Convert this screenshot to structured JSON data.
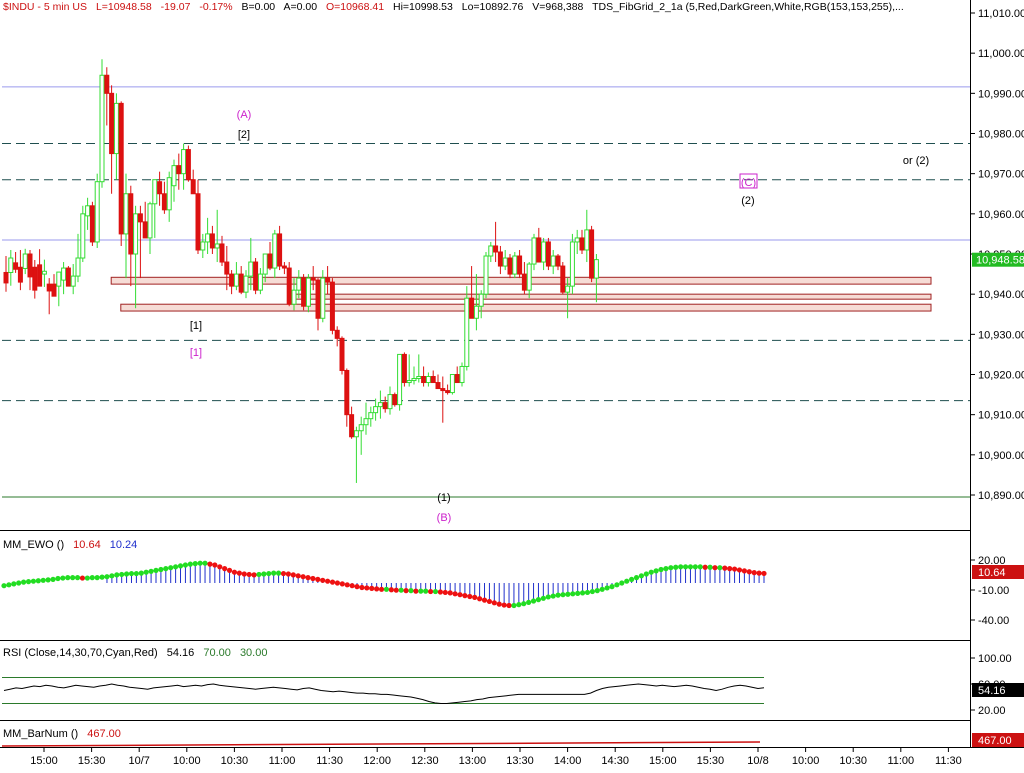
{
  "header": {
    "symbol": "$INDU - 5 min  US",
    "last": "L=10948.58",
    "change": "-19.07",
    "change_pct": "-0.17%",
    "bid": "B=0.00",
    "ask": "A=0.00",
    "open": "O=10968.41",
    "high": "Hi=10998.53",
    "low": "Lo=10892.76",
    "volume": "V=968,388",
    "study": "TDS_FibGrid_2_1a (5,Red,DarkGreen,White,RGB(153,153,255),..."
  },
  "colors": {
    "up": "#33dd33",
    "down": "#dd1111",
    "fib_dash": "#1f4f4f",
    "blue_line": "#9a9aee",
    "green_line": "#2b7a2b",
    "label_black": "#000000",
    "label_magenta": "#cc22cc",
    "ewo_hist": "#1f2fcc",
    "price_tag_bg": "#22bb22",
    "value_tag_bg": "#cc1111",
    "rsi_tag_bg": "#000000"
  },
  "price_axis": {
    "ticks": [
      "11,010.00",
      "11,000.00",
      "10,990.00",
      "10,980.00",
      "10,970.00",
      "10,960.00",
      "10,950.00",
      "10,940.00",
      "10,930.00",
      "10,920.00",
      "10,910.00",
      "10,900.00",
      "10,890.00"
    ],
    "last_price_tag": "10,948.58"
  },
  "time_axis": {
    "ticks": [
      "15:00",
      "15:30",
      "10/7",
      "10:00",
      "10:30",
      "11:00",
      "11:30",
      "12:00",
      "12:30",
      "13:00",
      "13:30",
      "14:00",
      "14:30",
      "15:00",
      "15:30",
      "10/8",
      "10:00",
      "10:30",
      "11:00",
      "11:30"
    ]
  },
  "wave_labels": [
    {
      "text": "(A)",
      "color": "magenta"
    },
    {
      "text": "[2]",
      "color": "black"
    },
    {
      "text": "[1]",
      "color": "black"
    },
    {
      "text": "[1]",
      "color": "magenta"
    },
    {
      "text": "(1)",
      "color": "black"
    },
    {
      "text": "(B)",
      "color": "magenta"
    },
    {
      "text": "(C)",
      "color": "magenta"
    },
    {
      "text": "(2)",
      "color": "black"
    },
    {
      "text": "or (2)",
      "color": "black"
    }
  ],
  "ewo": {
    "title": "MM_EWO ()",
    "v1": "10.64",
    "v2": "10.24",
    "axis": [
      "20.00",
      "-10.00",
      "-40.00"
    ],
    "tag": "10.64"
  },
  "rsi": {
    "title": "RSI (Close,14,30,70,Cyan,Red)",
    "v1": "54.16",
    "v2": "70.00",
    "v3": "30.00",
    "axis": [
      "100.00",
      "60.00",
      "20.00"
    ],
    "tag": "54.16"
  },
  "barnum": {
    "title": "MM_BarNum ()",
    "value": "467.00",
    "tag": "467.00"
  },
  "chart_data": {
    "type": "candlestick",
    "y_range": [
      10887,
      11013
    ],
    "levels": {
      "blue_lines": [
        10991.6,
        10953.5
      ],
      "green_line": 10889.5,
      "fib_dashed": [
        10977.5,
        10968.5,
        10928.5,
        10913.5
      ]
    },
    "zones": [
      {
        "from_bar": 24,
        "to_bar": 128,
        "low": 10942.5,
        "high": 10944.2
      },
      {
        "from_bar": 61,
        "to_bar": 128,
        "low": 10938.8,
        "high": 10940.0
      },
      {
        "from_bar": 26,
        "to_bar": 128,
        "low": 10935.8,
        "high": 10937.5
      }
    ],
    "candles": [
      {
        "o": 10945.4,
        "h": 10949.5,
        "l": 10940.6,
        "c": 10942.8
      },
      {
        "o": 10945.4,
        "h": 10951.0,
        "l": 10942.1,
        "c": 10949.0
      },
      {
        "o": 10947.8,
        "h": 10950.5,
        "l": 10945.3,
        "c": 10946.2
      },
      {
        "o": 10946.7,
        "h": 10951.0,
        "l": 10941.0,
        "c": 10943.0
      },
      {
        "o": 10946.4,
        "h": 10951.3,
        "l": 10945.0,
        "c": 10950.0
      },
      {
        "o": 10950.0,
        "h": 10951.0,
        "l": 10941.0,
        "c": 10944.3
      },
      {
        "o": 10946.7,
        "h": 10948.5,
        "l": 10938.9,
        "c": 10941.0
      },
      {
        "o": 10947.3,
        "h": 10951.2,
        "l": 10942.0,
        "c": 10942.0
      },
      {
        "o": 10945.0,
        "h": 10948.6,
        "l": 10941.8,
        "c": 10945.7
      },
      {
        "o": 10942.5,
        "h": 10944.0,
        "l": 10935.0,
        "c": 10940.8
      },
      {
        "o": 10942.5,
        "h": 10945.0,
        "l": 10940.0,
        "c": 10939.5
      },
      {
        "o": 10942.0,
        "h": 10945.5,
        "l": 10937.0,
        "c": 10945.5
      },
      {
        "o": 10943.5,
        "h": 10948.0,
        "l": 10940.0,
        "c": 10946.5
      },
      {
        "o": 10946.5,
        "h": 10947.0,
        "l": 10942.0,
        "c": 10942.0
      },
      {
        "o": 10942.0,
        "h": 10947.5,
        "l": 10940.0,
        "c": 10944.5
      },
      {
        "o": 10944.5,
        "h": 10955.0,
        "l": 10943.0,
        "c": 10949.0
      },
      {
        "o": 10949.0,
        "h": 10962.0,
        "l": 10948.0,
        "c": 10960.0
      },
      {
        "o": 10959.5,
        "h": 10964.0,
        "l": 10956.0,
        "c": 10962.0
      },
      {
        "o": 10962.0,
        "h": 10963.0,
        "l": 10952.0,
        "c": 10953.0
      },
      {
        "o": 10953.0,
        "h": 10970.0,
        "l": 10951.5,
        "c": 10968.0
      },
      {
        "o": 10968.0,
        "h": 10998.5,
        "l": 10966.5,
        "c": 10994.5
      },
      {
        "o": 10994.5,
        "h": 10996.5,
        "l": 10982.0,
        "c": 10990.0
      },
      {
        "o": 10990.0,
        "h": 10992.0,
        "l": 10965.0,
        "c": 10975.0
      },
      {
        "o": 10975.0,
        "h": 10990.0,
        "l": 10968.5,
        "c": 10987.5
      },
      {
        "o": 10987.5,
        "h": 10988.0,
        "l": 10952.0,
        "c": 10955.0
      },
      {
        "o": 10955.0,
        "h": 10970.0,
        "l": 10944.0,
        "c": 10965.0
      },
      {
        "o": 10965.0,
        "h": 10967.0,
        "l": 10942.0,
        "c": 10950.0
      },
      {
        "o": 10950.0,
        "h": 10962.0,
        "l": 10936.5,
        "c": 10960.0
      },
      {
        "o": 10960.0,
        "h": 10962.0,
        "l": 10944.0,
        "c": 10958.0
      },
      {
        "o": 10958.0,
        "h": 10963.0,
        "l": 10954.0,
        "c": 10954.0
      },
      {
        "o": 10954.0,
        "h": 10963.0,
        "l": 10950.0,
        "c": 10962.5
      },
      {
        "o": 10962.5,
        "h": 10968.5,
        "l": 10954.0,
        "c": 10968.5
      },
      {
        "o": 10968.0,
        "h": 10970.5,
        "l": 10962.0,
        "c": 10965.0
      },
      {
        "o": 10965.0,
        "h": 10968.0,
        "l": 10960.0,
        "c": 10961.0
      },
      {
        "o": 10961.0,
        "h": 10970.5,
        "l": 10958.0,
        "c": 10969.0
      },
      {
        "o": 10967.0,
        "h": 10973.5,
        "l": 10963.0,
        "c": 10972.0
      },
      {
        "o": 10972.0,
        "h": 10975.0,
        "l": 10966.0,
        "c": 10970.0
      },
      {
        "o": 10970.0,
        "h": 10977.5,
        "l": 10966.0,
        "c": 10976.0
      },
      {
        "o": 10976.0,
        "h": 10977.0,
        "l": 10968.0,
        "c": 10968.5
      },
      {
        "o": 10968.5,
        "h": 10971.0,
        "l": 10965.0,
        "c": 10965.0
      },
      {
        "o": 10965.0,
        "h": 10968.5,
        "l": 10950.0,
        "c": 10951.0
      },
      {
        "o": 10951.0,
        "h": 10955.0,
        "l": 10949.0,
        "c": 10953.0
      },
      {
        "o": 10953.0,
        "h": 10959.0,
        "l": 10950.0,
        "c": 10955.0
      },
      {
        "o": 10955.0,
        "h": 10957.0,
        "l": 10950.0,
        "c": 10951.5
      },
      {
        "o": 10951.5,
        "h": 10961.0,
        "l": 10948.0,
        "c": 10952.5
      },
      {
        "o": 10952.5,
        "h": 10954.5,
        "l": 10947.0,
        "c": 10948.0
      },
      {
        "o": 10948.0,
        "h": 10952.0,
        "l": 10941.0,
        "c": 10945.0
      },
      {
        "o": 10945.0,
        "h": 10946.0,
        "l": 10940.0,
        "c": 10942.0
      },
      {
        "o": 10942.0,
        "h": 10948.0,
        "l": 10941.0,
        "c": 10945.0
      },
      {
        "o": 10945.0,
        "h": 10947.0,
        "l": 10940.0,
        "c": 10940.5
      },
      {
        "o": 10940.5,
        "h": 10946.0,
        "l": 10939.0,
        "c": 10944.5
      },
      {
        "o": 10944.5,
        "h": 10954.0,
        "l": 10941.0,
        "c": 10948.0
      },
      {
        "o": 10948.0,
        "h": 10949.0,
        "l": 10940.0,
        "c": 10941.0
      },
      {
        "o": 10941.0,
        "h": 10946.5,
        "l": 10940.0,
        "c": 10945.0
      },
      {
        "o": 10945.0,
        "h": 10950.0,
        "l": 10943.0,
        "c": 10950.0
      },
      {
        "o": 10950.0,
        "h": 10953.0,
        "l": 10946.0,
        "c": 10946.5
      },
      {
        "o": 10946.5,
        "h": 10956.0,
        "l": 10944.0,
        "c": 10955.0
      },
      {
        "o": 10955.0,
        "h": 10957.0,
        "l": 10946.0,
        "c": 10947.0
      },
      {
        "o": 10947.0,
        "h": 10948.0,
        "l": 10945.0,
        "c": 10946.5
      },
      {
        "o": 10946.5,
        "h": 10948.0,
        "l": 10937.0,
        "c": 10937.5
      },
      {
        "o": 10937.5,
        "h": 10944.0,
        "l": 10936.0,
        "c": 10941.0
      },
      {
        "o": 10941.0,
        "h": 10946.0,
        "l": 10939.0,
        "c": 10944.0
      },
      {
        "o": 10944.0,
        "h": 10945.0,
        "l": 10936.0,
        "c": 10937.0
      },
      {
        "o": 10937.0,
        "h": 10945.0,
        "l": 10935.5,
        "c": 10944.0
      },
      {
        "o": 10944.0,
        "h": 10947.0,
        "l": 10941.0,
        "c": 10943.5
      },
      {
        "o": 10943.5,
        "h": 10944.0,
        "l": 10931.0,
        "c": 10934.0
      },
      {
        "o": 10934.0,
        "h": 10946.0,
        "l": 10933.0,
        "c": 10944.0
      },
      {
        "o": 10944.0,
        "h": 10947.0,
        "l": 10940.0,
        "c": 10943.0
      },
      {
        "o": 10943.0,
        "h": 10944.0,
        "l": 10930.0,
        "c": 10931.0
      },
      {
        "o": 10931.0,
        "h": 10932.0,
        "l": 10927.0,
        "c": 10929.0
      },
      {
        "o": 10929.0,
        "h": 10929.5,
        "l": 10920.0,
        "c": 10921.0
      },
      {
        "o": 10921.0,
        "h": 10921.5,
        "l": 10907.0,
        "c": 10910.0
      },
      {
        "o": 10910.0,
        "h": 10912.0,
        "l": 10904.0,
        "c": 10904.5
      },
      {
        "o": 10904.5,
        "h": 10907.0,
        "l": 10893.0,
        "c": 10906.0
      },
      {
        "o": 10906.0,
        "h": 10909.5,
        "l": 10900.0,
        "c": 10907.5
      },
      {
        "o": 10907.5,
        "h": 10913.0,
        "l": 10905.0,
        "c": 10909.0
      },
      {
        "o": 10909.0,
        "h": 10912.0,
        "l": 10907.0,
        "c": 10910.5
      },
      {
        "o": 10910.5,
        "h": 10914.0,
        "l": 10908.5,
        "c": 10912.0
      },
      {
        "o": 10912.0,
        "h": 10916.0,
        "l": 10909.0,
        "c": 10913.0
      },
      {
        "o": 10913.0,
        "h": 10914.5,
        "l": 10910.5,
        "c": 10911.5
      },
      {
        "o": 10911.5,
        "h": 10917.0,
        "l": 10910.0,
        "c": 10915.0
      },
      {
        "o": 10915.0,
        "h": 10915.5,
        "l": 10912.0,
        "c": 10912.5
      },
      {
        "o": 10912.5,
        "h": 10925.0,
        "l": 10911.0,
        "c": 10925.0
      },
      {
        "o": 10925.0,
        "h": 10925.5,
        "l": 10917.0,
        "c": 10918.0
      },
      {
        "o": 10918.0,
        "h": 10925.0,
        "l": 10917.0,
        "c": 10918.5
      },
      {
        "o": 10918.5,
        "h": 10922.0,
        "l": 10917.5,
        "c": 10919.0
      },
      {
        "o": 10919.0,
        "h": 10925.0,
        "l": 10918.0,
        "c": 10919.5
      },
      {
        "o": 10919.5,
        "h": 10922.0,
        "l": 10917.0,
        "c": 10918.0
      },
      {
        "o": 10918.0,
        "h": 10920.5,
        "l": 10917.0,
        "c": 10919.5
      },
      {
        "o": 10919.5,
        "h": 10921.0,
        "l": 10918.0,
        "c": 10918.0
      },
      {
        "o": 10918.0,
        "h": 10920.0,
        "l": 10916.5,
        "c": 10916.5
      },
      {
        "o": 10916.5,
        "h": 10919.5,
        "l": 10908.0,
        "c": 10916.0
      },
      {
        "o": 10916.0,
        "h": 10917.5,
        "l": 10915.0,
        "c": 10915.5
      },
      {
        "o": 10915.5,
        "h": 10920.0,
        "l": 10915.0,
        "c": 10920.0
      },
      {
        "o": 10920.0,
        "h": 10922.0,
        "l": 10918.0,
        "c": 10918.0
      },
      {
        "o": 10918.0,
        "h": 10923.0,
        "l": 10917.0,
        "c": 10922.0
      },
      {
        "o": 10922.0,
        "h": 10942.0,
        "l": 10921.0,
        "c": 10939.0
      },
      {
        "o": 10939.0,
        "h": 10947.0,
        "l": 10934.0,
        "c": 10934.0
      },
      {
        "o": 10934.0,
        "h": 10945.0,
        "l": 10931.0,
        "c": 10937.0
      },
      {
        "o": 10937.0,
        "h": 10941.0,
        "l": 10934.0,
        "c": 10940.0
      },
      {
        "o": 10940.0,
        "h": 10950.5,
        "l": 10939.0,
        "c": 10949.5
      },
      {
        "o": 10949.5,
        "h": 10953.0,
        "l": 10948.0,
        "c": 10952.0
      },
      {
        "o": 10952.0,
        "h": 10958.0,
        "l": 10948.0,
        "c": 10950.5
      },
      {
        "o": 10950.5,
        "h": 10952.0,
        "l": 10945.0,
        "c": 10947.0
      },
      {
        "o": 10947.0,
        "h": 10951.0,
        "l": 10946.0,
        "c": 10949.0
      },
      {
        "o": 10949.0,
        "h": 10950.0,
        "l": 10944.0,
        "c": 10945.0
      },
      {
        "o": 10945.0,
        "h": 10950.5,
        "l": 10944.0,
        "c": 10949.5
      },
      {
        "o": 10949.5,
        "h": 10951.0,
        "l": 10944.0,
        "c": 10945.0
      },
      {
        "o": 10945.0,
        "h": 10948.0,
        "l": 10940.0,
        "c": 10941.0
      },
      {
        "o": 10941.0,
        "h": 10948.0,
        "l": 10939.0,
        "c": 10947.5
      },
      {
        "o": 10947.5,
        "h": 10955.0,
        "l": 10946.0,
        "c": 10954.0
      },
      {
        "o": 10954.0,
        "h": 10956.5,
        "l": 10948.0,
        "c": 10948.0
      },
      {
        "o": 10948.0,
        "h": 10954.0,
        "l": 10946.0,
        "c": 10953.0
      },
      {
        "o": 10953.0,
        "h": 10954.0,
        "l": 10946.0,
        "c": 10947.0
      },
      {
        "o": 10947.0,
        "h": 10951.0,
        "l": 10945.0,
        "c": 10949.5
      },
      {
        "o": 10949.5,
        "h": 10950.0,
        "l": 10946.0,
        "c": 10947.0
      },
      {
        "o": 10947.0,
        "h": 10948.0,
        "l": 10940.0,
        "c": 10940.5
      },
      {
        "o": 10940.5,
        "h": 10944.0,
        "l": 10934.0,
        "c": 10942.0
      },
      {
        "o": 10942.0,
        "h": 10955.0,
        "l": 10940.0,
        "c": 10953.0
      },
      {
        "o": 10953.0,
        "h": 10956.0,
        "l": 10950.0,
        "c": 10954.0
      },
      {
        "o": 10954.0,
        "h": 10956.0,
        "l": 10950.0,
        "c": 10951.0
      },
      {
        "o": 10951.0,
        "h": 10961.0,
        "l": 10948.0,
        "c": 10956.0
      },
      {
        "o": 10956.0,
        "h": 10957.0,
        "l": 10943.0,
        "c": 10944.0
      },
      {
        "o": 10944.0,
        "h": 10950.0,
        "l": 10938.0,
        "c": 10948.6
      }
    ],
    "ewo": [
      -3,
      -2,
      -1,
      0,
      1,
      1.5,
      2,
      2.5,
      3,
      3.5,
      4,
      5,
      5.5,
      6,
      6,
      6,
      5.5,
      5.5,
      6,
      6,
      6.5,
      7,
      8,
      9,
      9.5,
      10,
      10.5,
      10.5,
      11,
      12,
      13,
      14,
      15,
      16,
      17,
      18,
      19,
      20,
      21,
      21.5,
      22,
      22,
      21,
      20,
      18,
      16,
      14,
      12,
      11,
      10,
      9.5,
      9,
      9.5,
      10,
      10.5,
      11,
      11,
      10.5,
      10,
      9,
      8,
      7,
      6,
      5,
      4,
      3,
      2,
      1,
      0,
      -1,
      -2,
      -3,
      -4,
      -5,
      -5.5,
      -6,
      -6.5,
      -7,
      -7,
      -7.5,
      -8,
      -8,
      -8.5,
      -8.5,
      -9,
      -9,
      -9,
      -9.5,
      -9.5,
      -10,
      -10.5,
      -11,
      -12,
      -13,
      -14,
      -15,
      -16,
      -17.5,
      -19,
      -20.5,
      -22,
      -23.5,
      -24.5,
      -25,
      -25,
      -24,
      -23,
      -21.5,
      -20,
      -18.5,
      -17,
      -15.5,
      -14.5,
      -13.5,
      -13,
      -12.5,
      -12,
      -11.5,
      -11,
      -10.5,
      -9.5,
      -8.5,
      -7,
      -5.5,
      -4,
      -2,
      0,
      2,
      4,
      6,
      8,
      10,
      12,
      13.5,
      15,
      16,
      17,
      17.5,
      18,
      18,
      18,
      18,
      18,
      17.5,
      17.5,
      17,
      17,
      16.5,
      16,
      15.5,
      14.5,
      13.5,
      12.5,
      11.5,
      11,
      10.6
    ],
    "rsi": [
      50,
      52,
      54,
      53,
      55,
      57,
      56,
      58,
      57,
      55,
      54,
      56,
      58,
      57,
      56,
      55,
      57,
      58,
      60,
      58,
      57,
      55,
      54,
      53,
      52,
      54,
      55,
      56,
      57,
      58,
      56,
      57,
      58,
      57,
      59,
      60,
      58,
      57,
      56,
      55,
      54,
      53,
      52,
      53,
      54,
      55,
      54,
      53,
      52,
      51,
      53,
      54,
      52,
      50,
      49,
      48,
      49,
      48,
      47,
      46,
      46,
      45,
      45,
      44,
      44,
      43,
      42,
      41,
      40,
      38,
      36,
      33,
      31,
      30,
      30,
      31,
      32,
      33,
      34,
      36,
      37,
      39,
      40,
      41,
      42,
      43,
      44,
      44,
      44,
      44,
      44,
      44,
      44,
      44,
      44,
      44,
      44,
      44,
      46,
      50,
      53,
      55,
      56,
      57,
      58,
      59,
      60,
      59,
      58,
      57,
      58,
      57,
      56,
      57,
      58,
      57,
      55,
      53,
      52,
      50,
      52,
      55,
      57,
      58,
      57,
      55,
      53,
      54.16
    ]
  }
}
